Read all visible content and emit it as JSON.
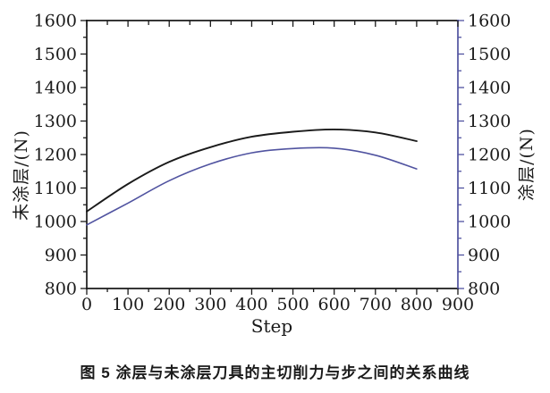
{
  "figure": {
    "caption": "图 5 涂层与未涂层刀具的主切削力与步之间的关系曲线"
  },
  "chart_data": {
    "type": "line",
    "title": "",
    "xlabel": "Step",
    "ylabel_left": "未涂层/(N)",
    "ylabel_right": "涂层/(N)",
    "grid": false,
    "legend": "none",
    "x_axis": {
      "min": 0,
      "max": 900,
      "major_step": 100,
      "minor_step": 50,
      "tick_labels": [
        "0",
        "100",
        "200",
        "300",
        "400",
        "500",
        "600",
        "700",
        "800",
        "900"
      ]
    },
    "y_left_axis": {
      "min": 800,
      "max": 1600,
      "major_step": 100,
      "minor_step": 50,
      "tick_labels": [
        "800",
        "900",
        "1000",
        "1100",
        "1200",
        "1300",
        "1400",
        "1500",
        "1600"
      ]
    },
    "y_right_axis": {
      "min": 800,
      "max": 1600,
      "major_step": 100,
      "minor_step": 50,
      "tick_labels": [
        "800",
        "900",
        "1000",
        "1100",
        "1200",
        "1300",
        "1400",
        "1500",
        "1600"
      ]
    },
    "series": [
      {
        "name": "未涂层 (uncoated tool)",
        "color": "#1a1a1a",
        "stroke_width": 1.9,
        "points": [
          [
            0,
            1030
          ],
          [
            100,
            1112
          ],
          [
            200,
            1178
          ],
          [
            300,
            1222
          ],
          [
            400,
            1253
          ],
          [
            500,
            1268
          ],
          [
            600,
            1275
          ],
          [
            700,
            1266
          ],
          [
            800,
            1240
          ]
        ]
      },
      {
        "name": "涂层 (coated tool)",
        "color": "#5053a0",
        "stroke_width": 1.6,
        "points": [
          [
            0,
            990
          ],
          [
            100,
            1055
          ],
          [
            200,
            1122
          ],
          [
            300,
            1172
          ],
          [
            400,
            1205
          ],
          [
            500,
            1218
          ],
          [
            600,
            1219
          ],
          [
            700,
            1198
          ],
          [
            800,
            1157
          ]
        ]
      }
    ],
    "colors": {
      "background": "#ffffff",
      "left_axis": "#1a1a1a",
      "bottom_axis": "#1a1a1a",
      "top_axis": "#1a1a1a",
      "right_axis": "#5053a0",
      "tick_label_text": "#1a1a1a"
    }
  }
}
